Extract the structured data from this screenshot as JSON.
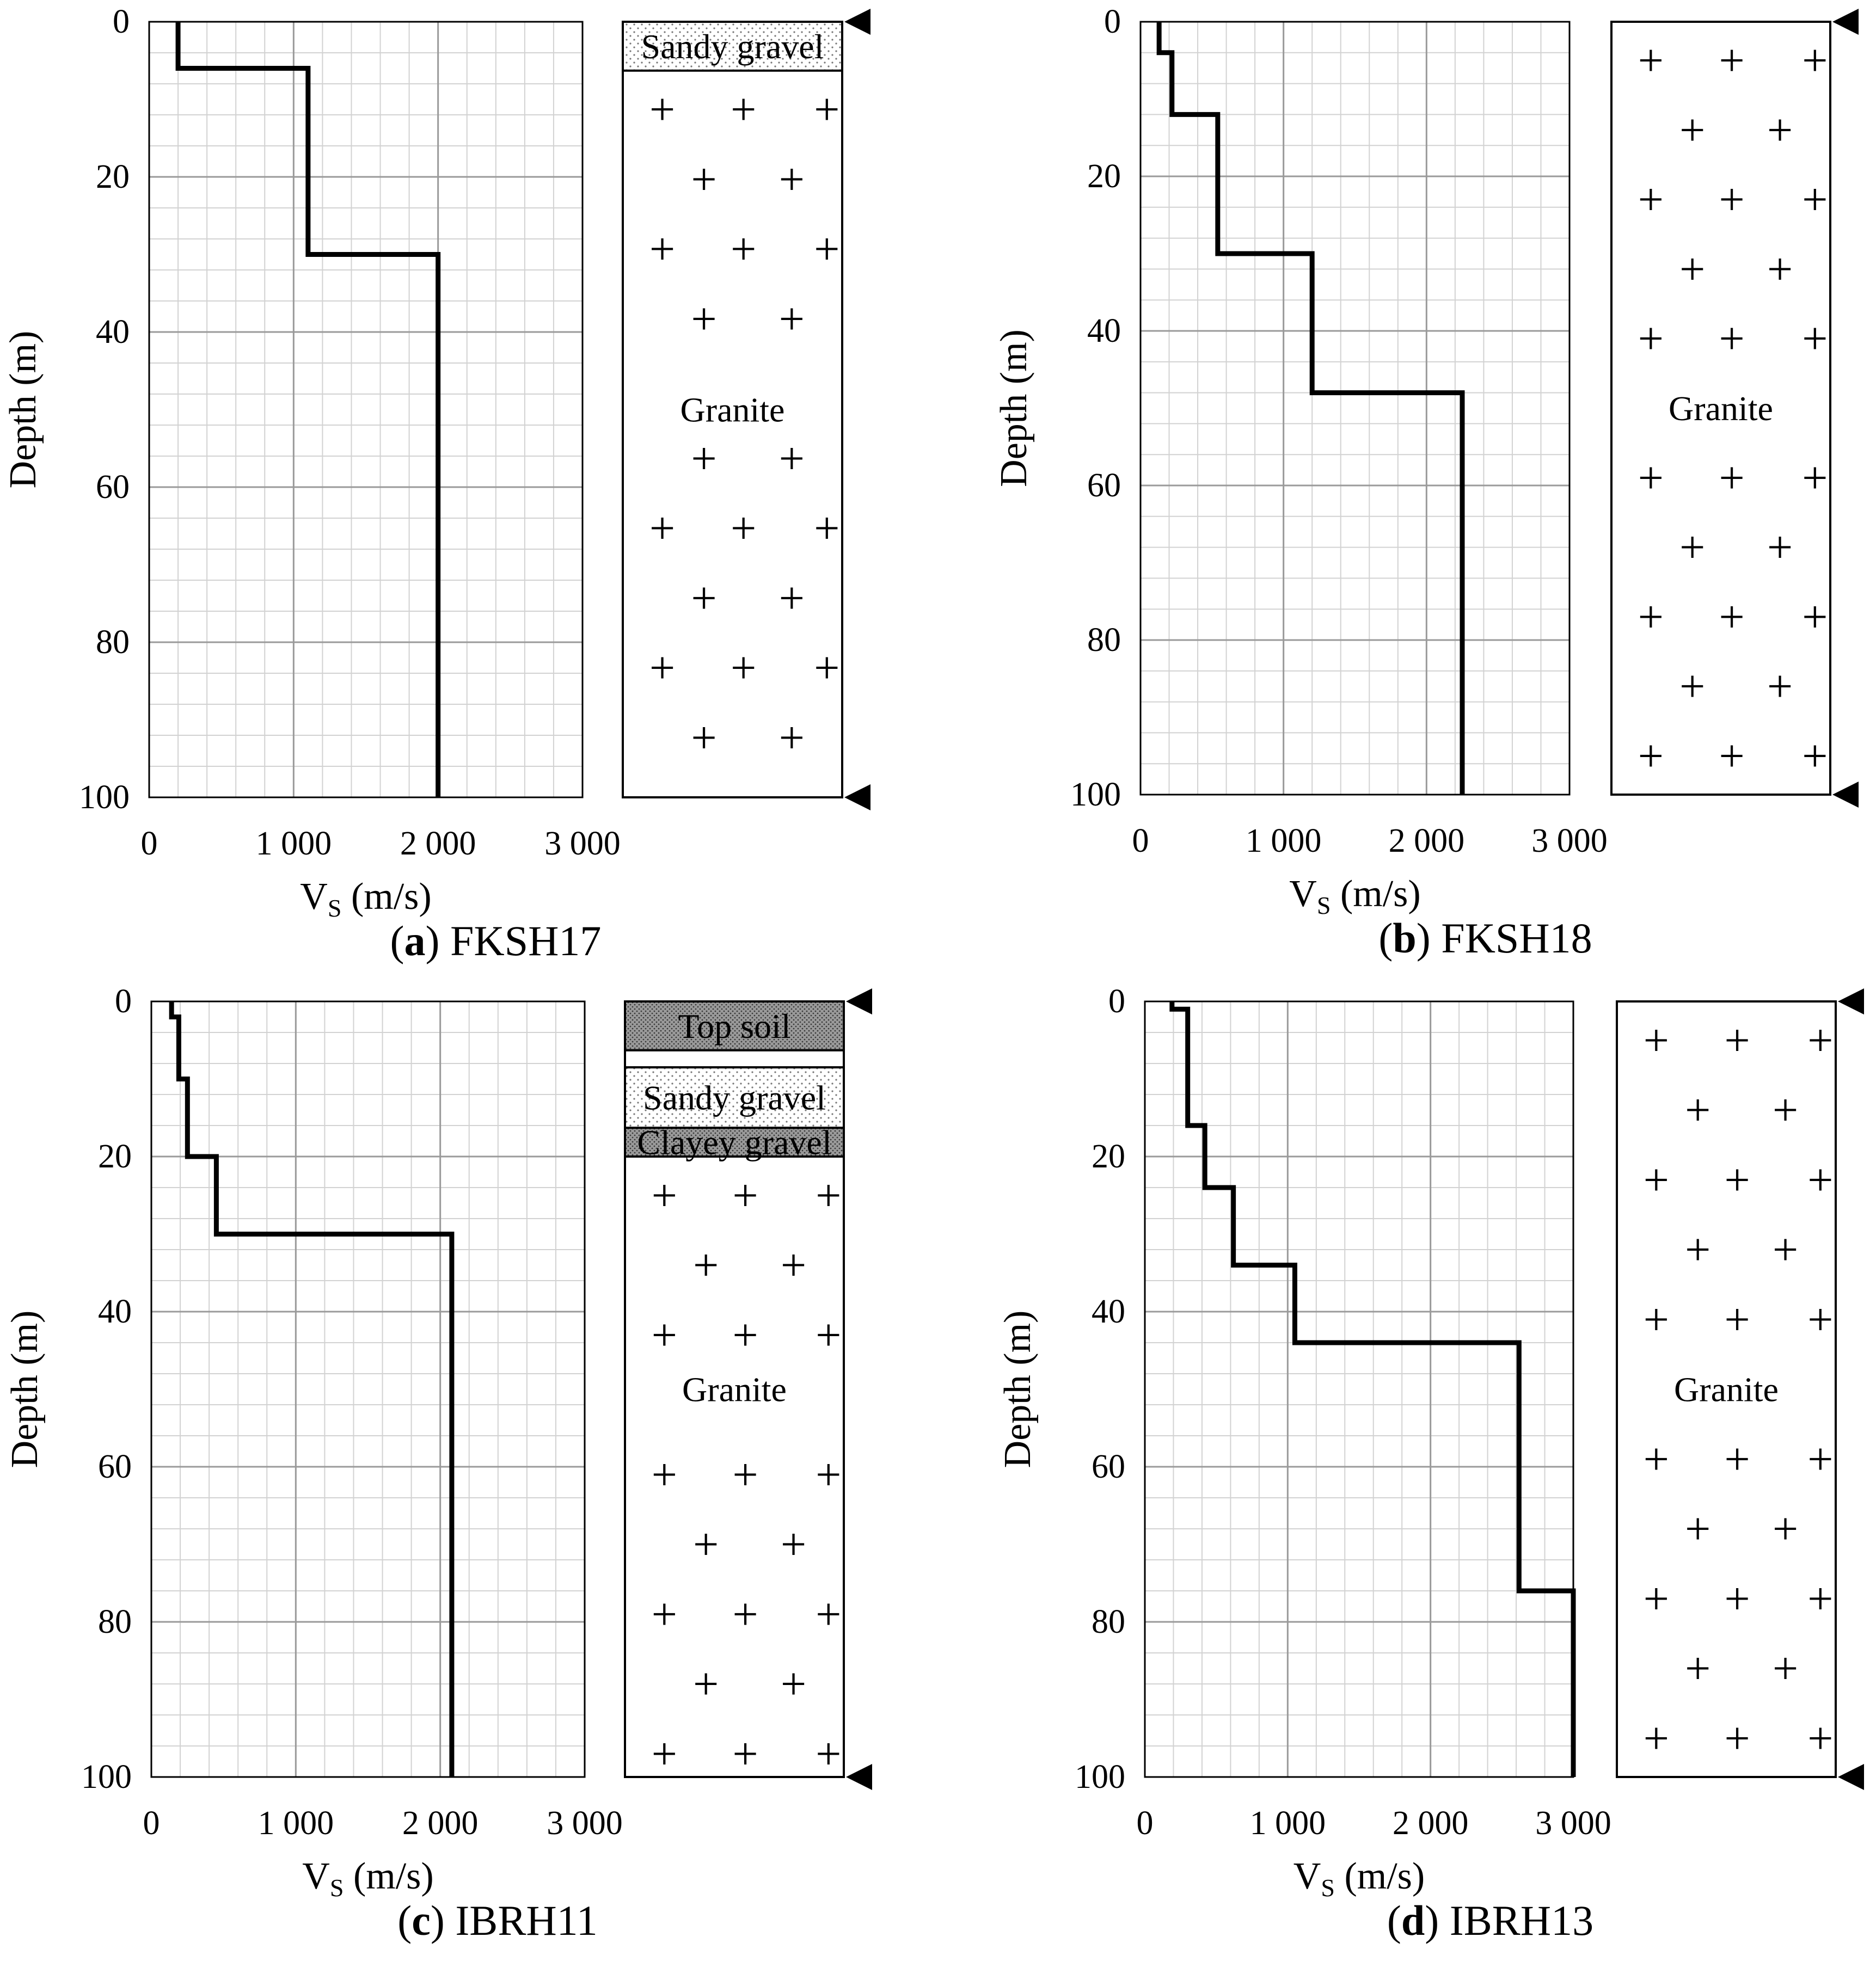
{
  "chart_data": [
    {
      "type": "line",
      "panel_letter": "a",
      "title": "FKSH17",
      "xlabel": "V",
      "xlabel_sub": "S",
      "xlabel_unit": " (m/s)",
      "ylabel": "Depth (m)",
      "xlim": [
        0,
        3000
      ],
      "ylim": [
        0,
        100
      ],
      "y_inverted": true,
      "x_ticks": [
        0,
        1000,
        2000,
        3000
      ],
      "x_tick_labels": [
        "0",
        "1 000",
        "2 000",
        "3 000"
      ],
      "y_ticks": [
        0,
        20,
        40,
        60,
        80,
        100
      ],
      "y_tick_labels": [
        "0",
        "20",
        "40",
        "60",
        "80",
        "100"
      ],
      "grid": true,
      "profile": [
        {
          "vs": 200,
          "top": 0,
          "bottom": 6
        },
        {
          "vs": 1100,
          "top": 6,
          "bottom": 30
        },
        {
          "vs": 2000,
          "top": 30,
          "bottom": 100
        }
      ],
      "strata": [
        {
          "name": "Sandy gravel",
          "top": 0,
          "bottom": 6.3,
          "fill": "dots"
        },
        {
          "name": "Granite",
          "top": 6.3,
          "bottom": 100,
          "fill": "cross"
        }
      ],
      "granite_label_depth": 50
    },
    {
      "type": "line",
      "panel_letter": "b",
      "title": "FKSH18",
      "xlabel": "V",
      "xlabel_sub": "S",
      "xlabel_unit": " (m/s)",
      "ylabel": "Depth (m)",
      "xlim": [
        0,
        3000
      ],
      "ylim": [
        0,
        100
      ],
      "y_inverted": true,
      "x_ticks": [
        0,
        1000,
        2000,
        3000
      ],
      "x_tick_labels": [
        "0",
        "1 000",
        "2 000",
        "3 000"
      ],
      "y_ticks": [
        0,
        20,
        40,
        60,
        80,
        100
      ],
      "y_tick_labels": [
        "0",
        "20",
        "40",
        "60",
        "80",
        "100"
      ],
      "grid": true,
      "profile": [
        {
          "vs": 130,
          "top": 0,
          "bottom": 4
        },
        {
          "vs": 220,
          "top": 4,
          "bottom": 12
        },
        {
          "vs": 540,
          "top": 12,
          "bottom": 30
        },
        {
          "vs": 1200,
          "top": 30,
          "bottom": 48
        },
        {
          "vs": 2250,
          "top": 48,
          "bottom": 100
        }
      ],
      "strata": [
        {
          "name": "Granite",
          "top": 0,
          "bottom": 100,
          "fill": "cross"
        }
      ],
      "granite_label_depth": 50
    },
    {
      "type": "line",
      "panel_letter": "c",
      "title": "IBRH11",
      "xlabel": "V",
      "xlabel_sub": "S",
      "xlabel_unit": " (m/s)",
      "ylabel": "Depth (m)",
      "xlim": [
        0,
        3000
      ],
      "ylim": [
        0,
        100
      ],
      "y_inverted": true,
      "x_ticks": [
        0,
        1000,
        2000,
        3000
      ],
      "x_tick_labels": [
        "0",
        "1 000",
        "2 000",
        "3 000"
      ],
      "y_ticks": [
        0,
        20,
        40,
        60,
        80,
        100
      ],
      "y_tick_labels": [
        "0",
        "20",
        "40",
        "60",
        "80",
        "100"
      ],
      "grid": true,
      "profile": [
        {
          "vs": 140,
          "top": 0,
          "bottom": 2
        },
        {
          "vs": 190,
          "top": 2,
          "bottom": 10
        },
        {
          "vs": 250,
          "top": 10,
          "bottom": 20
        },
        {
          "vs": 450,
          "top": 20,
          "bottom": 30
        },
        {
          "vs": 2080,
          "top": 30,
          "bottom": 100
        }
      ],
      "strata": [
        {
          "name": "Top soil",
          "top": 0,
          "bottom": 6.3,
          "fill": "dark"
        },
        {
          "name": "",
          "top": 6.3,
          "bottom": 8.5,
          "fill": "none"
        },
        {
          "name": "Sandy gravel",
          "top": 8.5,
          "bottom": 16.3,
          "fill": "dots"
        },
        {
          "name": "Clayey gravel",
          "top": 16.3,
          "bottom": 20,
          "fill": "dark"
        },
        {
          "name": "Granite",
          "top": 20,
          "bottom": 100,
          "fill": "cross"
        }
      ],
      "granite_label_depth": 50
    },
    {
      "type": "line",
      "panel_letter": "d",
      "title": "IBRH13",
      "xlabel": "V",
      "xlabel_sub": "S",
      "xlabel_unit": " (m/s)",
      "ylabel": "Depth (m)",
      "xlim": [
        0,
        3000
      ],
      "ylim": [
        0,
        100
      ],
      "y_inverted": true,
      "x_ticks": [
        0,
        1000,
        2000,
        3000
      ],
      "x_tick_labels": [
        "0",
        "1 000",
        "2 000",
        "3 000"
      ],
      "y_ticks": [
        0,
        20,
        40,
        60,
        80,
        100
      ],
      "y_tick_labels": [
        "0",
        "20",
        "40",
        "60",
        "80",
        "100"
      ],
      "grid": true,
      "profile": [
        {
          "vs": 190,
          "top": 0,
          "bottom": 1
        },
        {
          "vs": 300,
          "top": 1,
          "bottom": 16
        },
        {
          "vs": 420,
          "top": 16,
          "bottom": 24
        },
        {
          "vs": 620,
          "top": 24,
          "bottom": 34
        },
        {
          "vs": 1050,
          "top": 34,
          "bottom": 44
        },
        {
          "vs": 2620,
          "top": 44,
          "bottom": 76
        },
        {
          "vs": 3000,
          "top": 76,
          "bottom": 100
        }
      ],
      "strata": [
        {
          "name": "Granite",
          "top": 0,
          "bottom": 100,
          "fill": "cross"
        }
      ],
      "granite_label_depth": 50
    }
  ]
}
